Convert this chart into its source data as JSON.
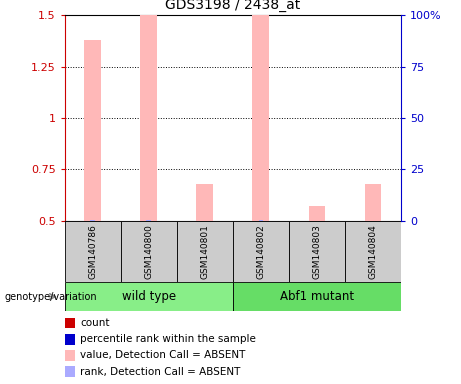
{
  "title": "GDS3198 / 2438_at",
  "samples": [
    "GSM140786",
    "GSM140800",
    "GSM140801",
    "GSM140802",
    "GSM140803",
    "GSM140804"
  ],
  "pink_bar_heights": [
    1.38,
    1.5,
    0.68,
    1.5,
    0.57,
    0.68
  ],
  "blue_bar_heights": [
    0.502,
    0.502,
    0.0,
    0.502,
    0.0,
    0.0
  ],
  "ylim_left": [
    0.5,
    1.5
  ],
  "ylim_right": [
    0,
    100
  ],
  "yticks_left": [
    0.5,
    0.75,
    1.0,
    1.25,
    1.5
  ],
  "ytick_labels_left": [
    "0.5",
    "0.75",
    "1",
    "1.25",
    "1.5"
  ],
  "yticks_right": [
    0,
    25,
    50,
    75,
    100
  ],
  "ytick_labels_right": [
    "0",
    "25",
    "50",
    "75",
    "100%"
  ],
  "left_axis_color": "#CC0000",
  "right_axis_color": "#0000CC",
  "pink_color": "#FFB8B8",
  "blue_color": "#AAAAFF",
  "sample_box_color": "#CCCCCC",
  "group_wt_color": "#88EE88",
  "group_mut_color": "#66DD66",
  "bar_width": 0.3,
  "blue_bar_width": 0.08,
  "group_wt_label": "wild type",
  "group_mut_label": "Abf1 mutant",
  "genotype_label": "genotype/variation",
  "legend_items": [
    {
      "color": "#CC0000",
      "label": "count",
      "square": true
    },
    {
      "color": "#0000CC",
      "label": "percentile rank within the sample",
      "square": true
    },
    {
      "color": "#FFB8B8",
      "label": "value, Detection Call = ABSENT",
      "square": true
    },
    {
      "color": "#AAAAFF",
      "label": "rank, Detection Call = ABSENT",
      "square": true
    }
  ]
}
